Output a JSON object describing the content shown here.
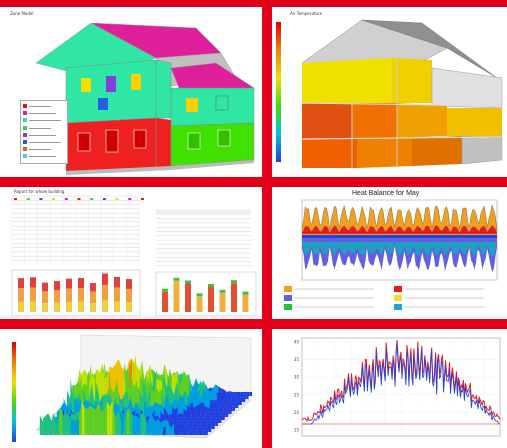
{
  "colors": {
    "banner_red": "#e0001a",
    "panel_bg": "#ffffff",
    "wall_green": "#2fe6a4",
    "roof_magenta": "#e0209a",
    "wall_red": "#ee2020",
    "wall_lime": "#40e000",
    "heat_yellow": "#f0e000",
    "heat_orange": "#f08000"
  },
  "panels": {
    "house_zones": {
      "legend": {
        "items": [
          {
            "color": "#e01010"
          },
          {
            "color": "#e02090"
          },
          {
            "color": "#30e0a0"
          },
          {
            "color": "#40d040"
          },
          {
            "color": "#8040e0"
          },
          {
            "color": "#2060e0"
          },
          {
            "color": "#e06020"
          },
          {
            "color": "#60c0e0"
          }
        ]
      }
    },
    "heat_balance": {
      "chart_data": {
        "type": "area",
        "title": "Heat Balance for May",
        "series": [
          {
            "color": "#f0a020"
          },
          {
            "color": "#6060e0"
          },
          {
            "color": "#20c040"
          },
          {
            "color": "#e02020"
          },
          {
            "color": "#f0e020"
          },
          {
            "color": "#20a0e0"
          }
        ]
      }
    },
    "temperature": {
      "chart_data": {
        "type": "line",
        "series": [
          {
            "color": "#e02020"
          },
          {
            "color": "#2040e0"
          }
        ],
        "yticks": [
          "40",
          "35",
          "30",
          "25",
          "20",
          "15"
        ]
      }
    }
  }
}
